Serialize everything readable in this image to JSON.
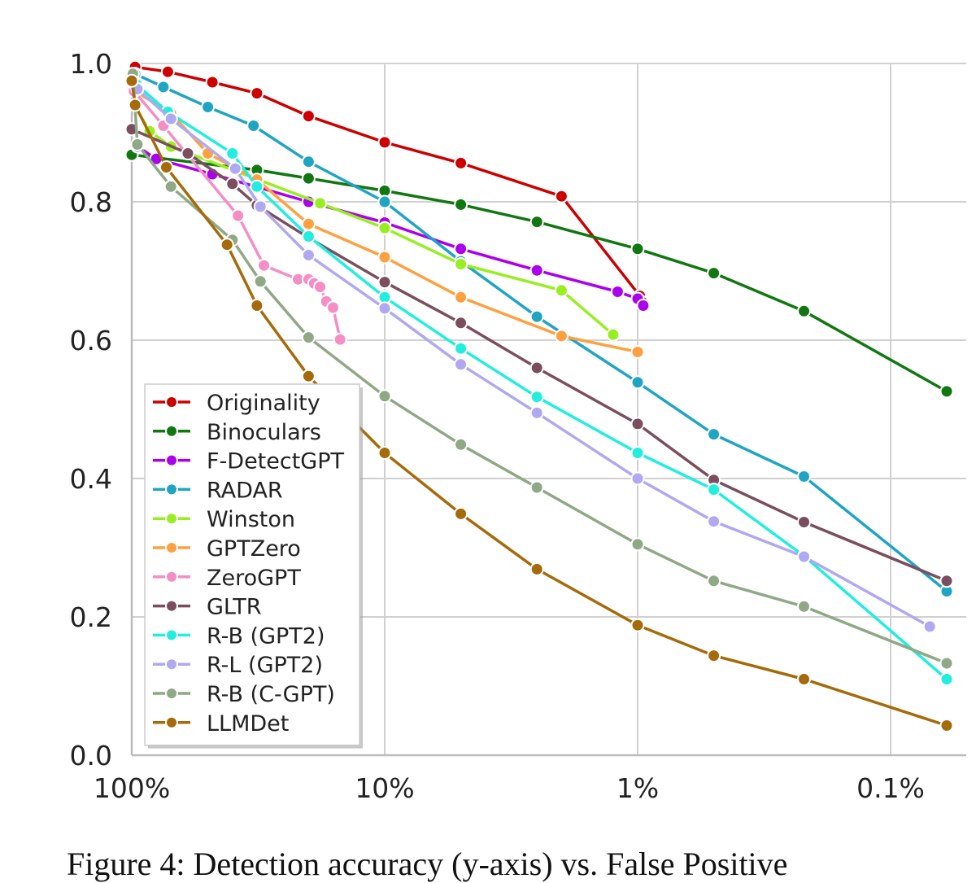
{
  "chart_data": {
    "type": "line",
    "x_scale": "log-reversed",
    "xlim": [
      100,
      0.06
    ],
    "ylim": [
      0.0,
      1.0
    ],
    "x_ticks": [
      100,
      10,
      1,
      0.1
    ],
    "x_tick_labels": [
      "100%",
      "10%",
      "1%",
      "0.1%"
    ],
    "y_ticks": [
      0.0,
      0.2,
      0.4,
      0.6,
      0.8,
      1.0
    ],
    "y_tick_labels": [
      "0.0",
      "0.2",
      "0.4",
      "0.6",
      "0.8",
      "1.0"
    ],
    "grid": true,
    "legend_position": "bottom-left",
    "series": [
      {
        "name": "Originality",
        "color": "#cc0000",
        "x": [
          97,
          72,
          48,
          32,
          20,
          10,
          5,
          2,
          0.98,
          0.96
        ],
        "y": [
          0.995,
          0.988,
          0.973,
          0.957,
          0.924,
          0.886,
          0.856,
          0.808,
          0.664,
          0.655
        ]
      },
      {
        "name": "Binoculars",
        "color": "#117711",
        "x": [
          100,
          32,
          20,
          10,
          5,
          2.5,
          1,
          0.5,
          0.22,
          0.06
        ],
        "y": [
          0.868,
          0.846,
          0.834,
          0.816,
          0.796,
          0.771,
          0.732,
          0.697,
          0.642,
          0.526
        ]
      },
      {
        "name": "F-DetectGPT",
        "color": "#aa00ee",
        "x": [
          95,
          80,
          48,
          20,
          10,
          5,
          2.5,
          1.2,
          1.0,
          0.95
        ],
        "y": [
          0.88,
          0.862,
          0.84,
          0.8,
          0.77,
          0.732,
          0.701,
          0.67,
          0.66,
          0.65
        ]
      },
      {
        "name": "RADAR",
        "color": "#1fa4c4",
        "x": [
          97,
          75,
          50,
          33,
          20,
          10,
          5,
          2.5,
          1,
          0.5,
          0.22,
          0.06
        ],
        "y": [
          0.985,
          0.966,
          0.937,
          0.91,
          0.858,
          0.8,
          0.714,
          0.634,
          0.539,
          0.464,
          0.403,
          0.237
        ]
      },
      {
        "name": "Winston",
        "color": "#99ee22",
        "x": [
          98,
          85,
          70,
          18,
          10,
          5,
          2,
          1.25
        ],
        "y": [
          0.94,
          0.902,
          0.88,
          0.798,
          0.762,
          0.71,
          0.672,
          0.608
        ]
      },
      {
        "name": "GPTZero",
        "color": "#ffa040",
        "x": [
          97,
          70,
          50,
          32,
          20,
          10,
          5,
          2,
          1
        ],
        "y": [
          0.96,
          0.928,
          0.87,
          0.832,
          0.768,
          0.72,
          0.662,
          0.606,
          0.583
        ]
      },
      {
        "name": "ZeroGPT",
        "color": "#f48ec5",
        "x": [
          98,
          75,
          38,
          30,
          22,
          20,
          19,
          18,
          17,
          16,
          15
        ],
        "y": [
          0.96,
          0.91,
          0.78,
          0.708,
          0.688,
          0.688,
          0.682,
          0.677,
          0.656,
          0.647,
          0.601
        ]
      },
      {
        "name": "GLTR",
        "color": "#7a4e5e",
        "x": [
          100,
          60,
          40,
          32,
          20,
          10,
          5,
          2.5,
          1,
          0.5,
          0.22,
          0.06
        ],
        "y": [
          0.905,
          0.87,
          0.826,
          0.795,
          0.748,
          0.684,
          0.625,
          0.56,
          0.479,
          0.398,
          0.337,
          0.252
        ]
      },
      {
        "name": "R-B (GPT2)",
        "color": "#22eedd",
        "x": [
          96,
          72,
          40,
          32,
          20,
          10,
          5,
          2.5,
          1,
          0.5,
          0.22,
          0.06
        ],
        "y": [
          0.97,
          0.93,
          0.87,
          0.822,
          0.75,
          0.662,
          0.588,
          0.518,
          0.437,
          0.384,
          0.288,
          0.11
        ]
      },
      {
        "name": "R-L (GPT2)",
        "color": "#b0a8f0",
        "x": [
          95,
          70,
          39,
          31,
          20,
          10,
          5,
          2.5,
          1,
          0.5,
          0.22,
          0.07
        ],
        "y": [
          0.963,
          0.92,
          0.848,
          0.793,
          0.723,
          0.646,
          0.565,
          0.495,
          0.4,
          0.338,
          0.287,
          0.186
        ]
      },
      {
        "name": "R-B (C-GPT)",
        "color": "#8fa886",
        "x": [
          99,
          95,
          70,
          40,
          31,
          20,
          10,
          5,
          2.5,
          1,
          0.5,
          0.22,
          0.06
        ],
        "y": [
          0.985,
          0.883,
          0.822,
          0.745,
          0.685,
          0.604,
          0.519,
          0.449,
          0.387,
          0.305,
          0.252,
          0.215,
          0.133
        ]
      },
      {
        "name": "LLMDet",
        "color": "#a56a0a",
        "x": [
          100,
          97,
          73,
          42,
          32,
          20,
          10,
          5,
          2.5,
          1,
          0.5,
          0.22,
          0.06
        ],
        "y": [
          0.975,
          0.94,
          0.85,
          0.738,
          0.65,
          0.548,
          0.437,
          0.349,
          0.269,
          0.188,
          0.144,
          0.11,
          0.043
        ]
      }
    ]
  },
  "caption": {
    "text": "Figure 4: Detection accuracy (y-axis) vs. False Positive"
  }
}
